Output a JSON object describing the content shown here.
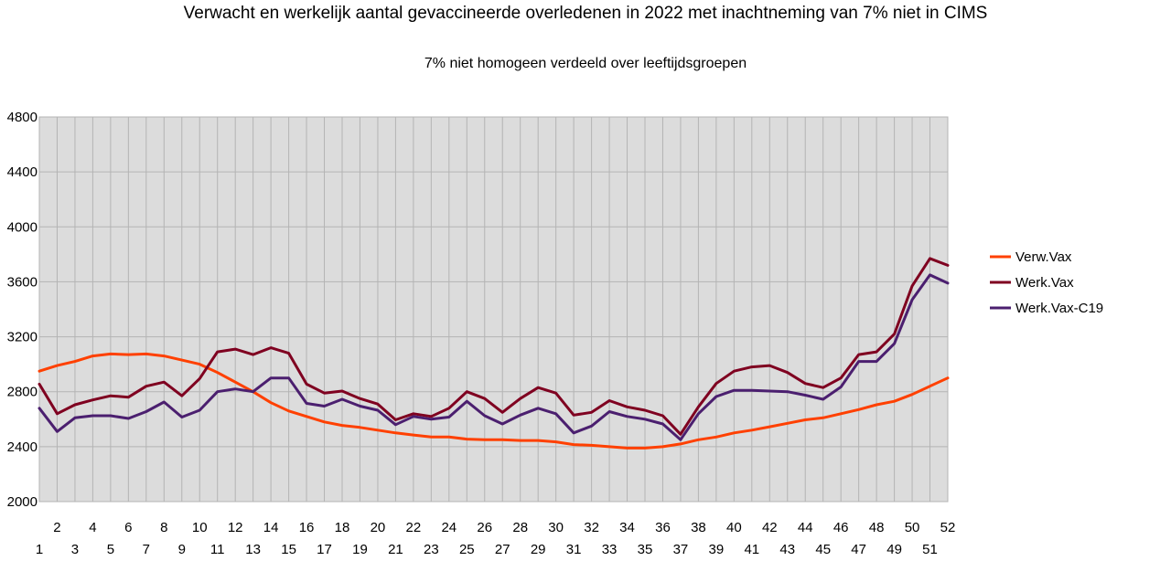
{
  "chart_data": {
    "type": "line",
    "title": "Verwacht en werkelijk aantal gevaccineerde overledenen in 2022 met inachtneming van 7% niet in CIMS",
    "subtitle": "7% niet homogeen verdeeld over leeftijdsgroepen",
    "x": [
      1,
      2,
      3,
      4,
      5,
      6,
      7,
      8,
      9,
      10,
      11,
      12,
      13,
      14,
      15,
      16,
      17,
      18,
      19,
      20,
      21,
      22,
      23,
      24,
      25,
      26,
      27,
      28,
      29,
      30,
      31,
      32,
      33,
      34,
      35,
      36,
      37,
      38,
      39,
      40,
      41,
      42,
      43,
      44,
      45,
      46,
      47,
      48,
      49,
      50,
      51,
      52
    ],
    "ylim": [
      2000,
      4800
    ],
    "yticks": [
      2000,
      2400,
      2800,
      3200,
      3600,
      4000,
      4400,
      4800
    ],
    "grid": true,
    "legend": "right",
    "series": [
      {
        "name": "Verw.Vax",
        "color": "#ff4000",
        "values": [
          2950,
          2990,
          3020,
          3060,
          3075,
          3070,
          3075,
          3060,
          3030,
          3000,
          2940,
          2870,
          2800,
          2720,
          2660,
          2620,
          2580,
          2555,
          2540,
          2520,
          2500,
          2485,
          2470,
          2470,
          2455,
          2450,
          2450,
          2445,
          2445,
          2435,
          2415,
          2410,
          2400,
          2390,
          2390,
          2400,
          2420,
          2450,
          2470,
          2500,
          2520,
          2545,
          2570,
          2595,
          2610,
          2640,
          2670,
          2705,
          2730,
          2780,
          2840,
          2900
        ]
      },
      {
        "name": "Werk.Vax",
        "color": "#7f0020",
        "values": [
          2855,
          2640,
          2705,
          2740,
          2770,
          2760,
          2840,
          2870,
          2770,
          2895,
          3090,
          3110,
          3070,
          3120,
          3080,
          2855,
          2790,
          2805,
          2750,
          2710,
          2595,
          2640,
          2620,
          2680,
          2800,
          2750,
          2650,
          2750,
          2830,
          2790,
          2630,
          2650,
          2735,
          2690,
          2665,
          2625,
          2490,
          2690,
          2860,
          2950,
          2980,
          2990,
          2940,
          2860,
          2830,
          2900,
          3070,
          3090,
          3220,
          3570,
          3770,
          3720
        ]
      },
      {
        "name": "Werk.Vax-C19",
        "color": "#4b1f6f",
        "values": [
          2680,
          2510,
          2610,
          2625,
          2625,
          2605,
          2655,
          2725,
          2615,
          2665,
          2800,
          2820,
          2800,
          2900,
          2900,
          2715,
          2695,
          2745,
          2695,
          2665,
          2560,
          2620,
          2600,
          2615,
          2730,
          2625,
          2565,
          2630,
          2680,
          2640,
          2500,
          2550,
          2655,
          2620,
          2600,
          2565,
          2450,
          2640,
          2765,
          2810,
          2810,
          2805,
          2800,
          2775,
          2745,
          2835,
          3020,
          3020,
          3150,
          3470,
          3650,
          3590
        ]
      }
    ]
  }
}
